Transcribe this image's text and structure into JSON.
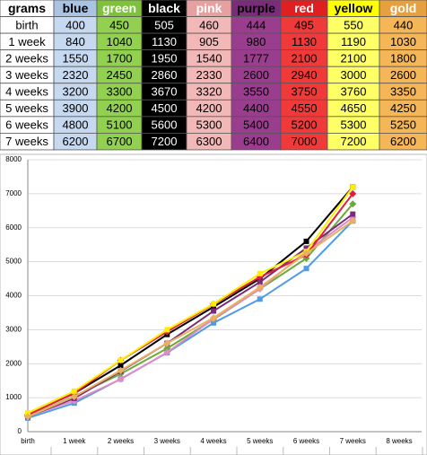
{
  "table": {
    "header": [
      "grams",
      "blue",
      "green",
      "black",
      "pink",
      "purple",
      "red",
      "yellow",
      "gold"
    ],
    "rows": [
      [
        "birth",
        400,
        450,
        505,
        460,
        444,
        495,
        550,
        440
      ],
      [
        "1 week",
        840,
        1040,
        1130,
        905,
        980,
        1130,
        1190,
        1030
      ],
      [
        "2 weeks",
        1550,
        1700,
        1950,
        1540,
        1777,
        2100,
        2100,
        1800
      ],
      [
        "3 weeks",
        2320,
        2450,
        2860,
        2330,
        2600,
        2940,
        3000,
        2600
      ],
      [
        "4 weeks",
        3200,
        3300,
        3670,
        3320,
        3550,
        3750,
        3760,
        3350
      ],
      [
        "5 weeks",
        3900,
        4200,
        4500,
        4200,
        4400,
        4550,
        4650,
        4250
      ],
      [
        "6 weeks",
        4800,
        5100,
        5600,
        5300,
        5400,
        5200,
        5300,
        5250
      ],
      [
        "7 weeks",
        6200,
        6700,
        7200,
        6300,
        6400,
        7000,
        7200,
        6200
      ]
    ]
  },
  "chart_data": {
    "type": "line",
    "categories": [
      "birth",
      "1 week",
      "2 weeks",
      "3 weeks",
      "4 weeks",
      "5 weeks",
      "6 weeks",
      "7 weeks",
      "8 weeks"
    ],
    "ylim": [
      0,
      8000
    ],
    "yticks": [
      0,
      1000,
      2000,
      3000,
      4000,
      5000,
      6000,
      7000,
      8000
    ],
    "grid": true,
    "series": [
      {
        "name": "blue",
        "color": "#4f9be8",
        "values": [
          400,
          840,
          1550,
          2320,
          3200,
          3900,
          4800,
          6200,
          null
        ]
      },
      {
        "name": "green",
        "color": "#6aaa3a",
        "values": [
          450,
          1040,
          1700,
          2450,
          3300,
          4200,
          5100,
          6700,
          null
        ]
      },
      {
        "name": "black",
        "color": "#000000",
        "values": [
          505,
          1130,
          1950,
          2860,
          3670,
          4500,
          5600,
          7200,
          null
        ]
      },
      {
        "name": "pink",
        "color": "#e08cc4",
        "values": [
          460,
          905,
          1540,
          2330,
          3320,
          4200,
          5300,
          6300,
          null
        ]
      },
      {
        "name": "purple",
        "color": "#7a2c7a",
        "values": [
          444,
          980,
          1777,
          2600,
          3550,
          4400,
          5400,
          6400,
          null
        ]
      },
      {
        "name": "red",
        "color": "#e0203a",
        "values": [
          495,
          1130,
          2100,
          2940,
          3750,
          4550,
          5200,
          7000,
          null
        ]
      },
      {
        "name": "yellow",
        "color": "#ffee00",
        "values": [
          550,
          1190,
          2100,
          3000,
          3760,
          4650,
          5300,
          7200,
          null
        ]
      },
      {
        "name": "gold",
        "color": "#e8b060",
        "values": [
          440,
          1030,
          1800,
          2600,
          3350,
          4250,
          5250,
          6200,
          null
        ]
      }
    ]
  }
}
